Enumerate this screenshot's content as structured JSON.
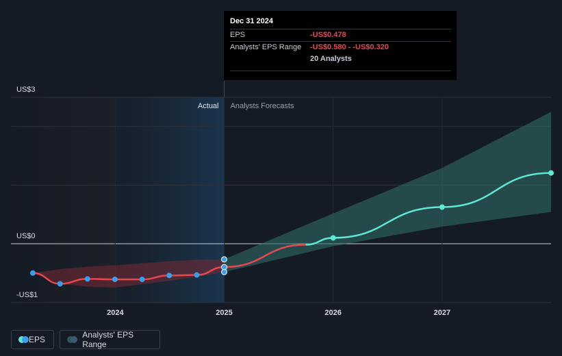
{
  "chart_data": {
    "type": "line",
    "y_axis": {
      "ticks": [
        {
          "value": 3,
          "label": "US$3"
        },
        {
          "value": 0,
          "label": "US$0"
        },
        {
          "value": -1,
          "label": "-US$1"
        }
      ],
      "ylim": [
        -1.05,
        3.0
      ]
    },
    "x_axis": {
      "ticks": [
        "2024",
        "2025",
        "2026",
        "2027"
      ],
      "xlim": [
        "2023-03-31",
        "2027-12-31"
      ]
    },
    "sections": {
      "actual_label": "Actual",
      "forecast_label": "Analysts Forecasts"
    },
    "series": [
      {
        "name": "EPS",
        "color": "#e5484d",
        "points": [
          {
            "x": "2023-03-31",
            "y": -0.6
          },
          {
            "x": "2023-06-30",
            "y": -0.82
          },
          {
            "x": "2023-09-30",
            "y": -0.72
          },
          {
            "x": "2023-12-31",
            "y": -0.73
          },
          {
            "x": "2024-03-31",
            "y": -0.73
          },
          {
            "x": "2024-06-30",
            "y": -0.65
          },
          {
            "x": "2024-09-30",
            "y": -0.64
          },
          {
            "x": "2024-12-31",
            "y": -0.478
          }
        ]
      },
      {
        "name": "EPS Forecast",
        "color": "#5ee8d4",
        "points": [
          {
            "x": "2024-12-31",
            "y": -0.478
          },
          {
            "x": "2025-12-31",
            "y": 0.12
          },
          {
            "x": "2026-12-31",
            "y": 0.75
          },
          {
            "x": "2027-12-31",
            "y": 1.45
          }
        ]
      }
    ],
    "range": {
      "name": "Analysts' EPS Range",
      "historical": [
        {
          "x": "2023-03-31",
          "low": -0.6,
          "high": -0.6
        },
        {
          "x": "2023-06-30",
          "low": -0.82,
          "high": -0.52
        },
        {
          "x": "2023-09-30",
          "low": -0.88,
          "high": -0.47
        },
        {
          "x": "2023-12-31",
          "low": -0.9,
          "high": -0.44
        },
        {
          "x": "2024-03-31",
          "low": -0.83,
          "high": -0.4
        },
        {
          "x": "2024-06-30",
          "low": -0.76,
          "high": -0.36
        },
        {
          "x": "2024-09-30",
          "low": -0.68,
          "high": -0.33
        },
        {
          "x": "2024-12-31",
          "low": -0.58,
          "high": -0.32
        }
      ],
      "forecast": [
        {
          "x": "2024-12-31",
          "low": -0.58,
          "high": -0.32
        },
        {
          "x": "2025-12-31",
          "low": -0.05,
          "high": 0.62
        },
        {
          "x": "2026-12-31",
          "low": 0.35,
          "high": 1.55
        },
        {
          "x": "2027-12-31",
          "low": 0.65,
          "high": 2.7
        }
      ]
    },
    "highlight_points": [
      -0.32,
      -0.478,
      -0.58
    ]
  },
  "tooltip": {
    "date": "Dec 31 2024",
    "eps_label": "EPS",
    "eps_value": "-US$0.478",
    "range_label": "Analysts' EPS Range",
    "range_value": "-US$0.580 - -US$0.320",
    "analysts": "20 Analysts"
  },
  "legend": {
    "eps_label": "EPS",
    "range_label": "Analysts' EPS Range"
  },
  "colors": {
    "eps_red": "#e5484d",
    "forecast_teal": "#5ee8d4",
    "marker_blue": "#3d9ee8",
    "range_teal": "#2a5a58"
  }
}
